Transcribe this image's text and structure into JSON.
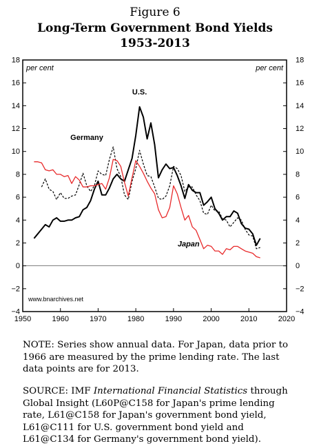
{
  "header": {
    "figure_label": "Figure 6",
    "title_line1": "Long-Term Government Bond Yields",
    "title_line2": "1953-2013"
  },
  "colors": {
    "us": "#000000",
    "germany": "#000000",
    "japan": "#e8292a",
    "axis": "#000000"
  },
  "chart_data": {
    "type": "line",
    "title": "Long-Term Government Bond Yields 1953-2013",
    "y_unit_left": "per cent",
    "y_unit_right": "per cent",
    "xlim": [
      1950,
      2020
    ],
    "ylim": [
      -4,
      18
    ],
    "x_ticks": [
      1950,
      1960,
      1970,
      1980,
      1990,
      2000,
      2010,
      2020
    ],
    "y_ticks": [
      -4,
      -2,
      0,
      2,
      4,
      6,
      8,
      10,
      12,
      14,
      16,
      18
    ],
    "zero_line": true,
    "source_watermark": "www.bnarchives.net",
    "series": [
      {
        "name": "U.S.",
        "style": "solid",
        "color": "#000000",
        "x": [
          1953,
          1954,
          1955,
          1956,
          1957,
          1958,
          1959,
          1960,
          1961,
          1962,
          1963,
          1964,
          1965,
          1966,
          1967,
          1968,
          1969,
          1970,
          1971,
          1972,
          1973,
          1974,
          1975,
          1976,
          1977,
          1978,
          1979,
          1980,
          1981,
          1982,
          1983,
          1984,
          1985,
          1986,
          1987,
          1988,
          1989,
          1990,
          1991,
          1992,
          1993,
          1994,
          1995,
          1996,
          1997,
          1998,
          1999,
          2000,
          2001,
          2002,
          2003,
          2004,
          2005,
          2006,
          2007,
          2008,
          2009,
          2010,
          2011,
          2012,
          2013
        ],
        "y": [
          2.4,
          2.8,
          3.2,
          3.6,
          3.4,
          4.0,
          4.2,
          3.9,
          3.9,
          4.0,
          4.0,
          4.2,
          4.3,
          4.9,
          5.1,
          5.7,
          6.7,
          7.4,
          6.2,
          6.2,
          6.8,
          7.6,
          8.0,
          7.6,
          7.4,
          8.4,
          9.4,
          11.4,
          13.9,
          13.0,
          11.1,
          12.5,
          10.6,
          7.7,
          8.4,
          8.9,
          8.5,
          8.6,
          7.9,
          7.0,
          5.9,
          7.1,
          6.6,
          6.4,
          6.4,
          5.3,
          5.6,
          6.0,
          5.0,
          4.6,
          4.0,
          4.3,
          4.3,
          4.8,
          4.6,
          3.7,
          3.3,
          3.2,
          2.8,
          1.8,
          2.4
        ]
      },
      {
        "name": "Germany",
        "style": "dashed",
        "color": "#000000",
        "x": [
          1955,
          1956,
          1957,
          1958,
          1959,
          1960,
          1961,
          1962,
          1963,
          1964,
          1965,
          1966,
          1967,
          1968,
          1969,
          1970,
          1971,
          1972,
          1973,
          1974,
          1975,
          1976,
          1977,
          1978,
          1979,
          1980,
          1981,
          1982,
          1983,
          1984,
          1985,
          1986,
          1987,
          1988,
          1989,
          1990,
          1991,
          1992,
          1993,
          1994,
          1995,
          1996,
          1997,
          1998,
          1999,
          2000,
          2001,
          2002,
          2003,
          2004,
          2005,
          2006,
          2007,
          2008,
          2009,
          2010,
          2011,
          2012,
          2013
        ],
        "y": [
          6.9,
          7.6,
          6.7,
          6.5,
          5.8,
          6.4,
          5.9,
          5.9,
          6.1,
          6.2,
          7.1,
          8.1,
          7.0,
          6.5,
          7.0,
          8.3,
          8.0,
          7.9,
          9.3,
          10.4,
          8.5,
          7.8,
          6.2,
          5.8,
          7.4,
          8.5,
          10.1,
          8.9,
          7.9,
          7.8,
          6.9,
          5.9,
          5.8,
          6.1,
          7.0,
          8.7,
          8.5,
          7.9,
          6.5,
          6.9,
          6.9,
          6.2,
          5.7,
          4.6,
          4.5,
          5.3,
          4.8,
          4.8,
          4.1,
          4.0,
          3.4,
          3.8,
          4.2,
          4.0,
          3.2,
          2.7,
          2.6,
          1.5,
          1.6
        ]
      },
      {
        "name": "Japan",
        "style": "solid",
        "color": "#e8292a",
        "x": [
          1953,
          1954,
          1955,
          1956,
          1957,
          1958,
          1959,
          1960,
          1961,
          1962,
          1963,
          1964,
          1965,
          1966,
          1967,
          1968,
          1969,
          1970,
          1971,
          1972,
          1973,
          1974,
          1975,
          1976,
          1977,
          1978,
          1979,
          1980,
          1981,
          1982,
          1983,
          1984,
          1985,
          1986,
          1987,
          1988,
          1989,
          1990,
          1991,
          1992,
          1993,
          1994,
          1995,
          1996,
          1997,
          1998,
          1999,
          2000,
          2001,
          2002,
          2003,
          2004,
          2005,
          2006,
          2007,
          2008,
          2009,
          2010,
          2011,
          2012,
          2013
        ],
        "y": [
          9.1,
          9.1,
          9.0,
          8.4,
          8.3,
          8.4,
          8.0,
          8.0,
          7.8,
          7.9,
          7.2,
          7.8,
          7.5,
          6.9,
          6.9,
          7.0,
          7.0,
          7.1,
          7.2,
          6.7,
          7.7,
          9.3,
          9.2,
          8.7,
          7.3,
          6.1,
          7.7,
          9.2,
          8.7,
          8.1,
          7.4,
          6.8,
          6.3,
          4.9,
          4.2,
          4.3,
          5.1,
          7.0,
          6.3,
          5.1,
          4.0,
          4.4,
          3.4,
          3.1,
          2.3,
          1.5,
          1.8,
          1.7,
          1.3,
          1.3,
          1.0,
          1.5,
          1.4,
          1.7,
          1.7,
          1.5,
          1.3,
          1.2,
          1.1,
          0.8,
          0.7
        ]
      }
    ],
    "annotations": [
      {
        "text": "U.S.",
        "x": 1981,
        "y": 15
      },
      {
        "text": "Germany",
        "x": 1967,
        "y": 11
      },
      {
        "text": "Japan",
        "x": 1994,
        "y": 1.7
      }
    ]
  },
  "notes": {
    "note": "NOTE: Series show annual data. For Japan, data prior to 1966 are measured by the prime lending rate. The last data points are for 2013.",
    "source_pre": "SOURCE: IMF ",
    "source_italic": "International Financial Statistics",
    "source_post": " through Global Insight (L60P@C158 for Japan's prime lending rate, L61@C158 for Japan's government bond yield, L61@C111 for U.S. government bond yield and L61@C134 for Germany's government bond yield)."
  }
}
